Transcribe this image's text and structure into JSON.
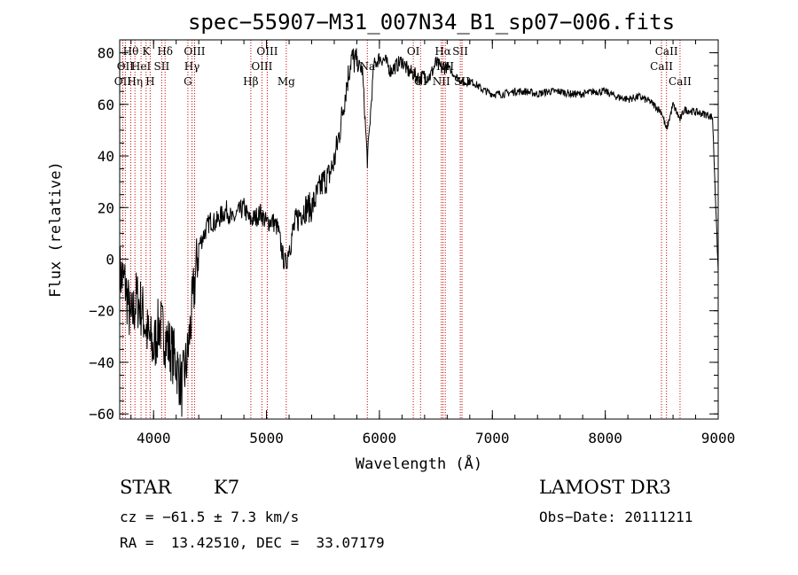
{
  "chart_data": {
    "type": "line",
    "title": "spec−55907−M31_007N34_B1_sp07−006.fits",
    "xlabel": "Wavelength (Å)",
    "ylabel": "Flux (relative)",
    "xlim": [
      3700,
      9000
    ],
    "ylim": [
      -62,
      85
    ],
    "xticks": [
      4000,
      5000,
      6000,
      7000,
      8000,
      9000
    ],
    "yticks": [
      -60,
      -40,
      -20,
      0,
      20,
      40,
      60,
      80
    ],
    "minor_x_step": 200,
    "minor_y_step": 5,
    "series": [
      {
        "name": "spectrum",
        "color": "#000000",
        "x": [
          3700,
          3750,
          3800,
          3850,
          3900,
          3950,
          4000,
          4050,
          4100,
          4150,
          4200,
          4250,
          4300,
          4350,
          4400,
          4450,
          4500,
          4550,
          4600,
          4650,
          4700,
          4750,
          4800,
          4850,
          4900,
          4950,
          5000,
          5050,
          5100,
          5150,
          5175,
          5200,
          5250,
          5300,
          5350,
          5400,
          5450,
          5500,
          5550,
          5600,
          5650,
          5700,
          5750,
          5800,
          5850,
          5893,
          5950,
          6000,
          6050,
          6100,
          6150,
          6200,
          6250,
          6300,
          6350,
          6400,
          6450,
          6500,
          6550,
          6600,
          6650,
          6700,
          6750,
          6800,
          6850,
          6900,
          6950,
          7000,
          7100,
          7200,
          7300,
          7400,
          7500,
          7600,
          7700,
          7800,
          7900,
          8000,
          8100,
          8200,
          8300,
          8400,
          8500,
          8542,
          8600,
          8662,
          8700,
          8800,
          8900,
          8950,
          9000
        ],
        "y": [
          -5,
          -10,
          -25,
          -15,
          -20,
          -30,
          -35,
          -25,
          -30,
          -35,
          -40,
          -50,
          -38,
          -15,
          5,
          10,
          15,
          14,
          17,
          19,
          15,
          18,
          20,
          15,
          16,
          18,
          14,
          15,
          12,
          0,
          -2,
          5,
          13,
          18,
          20,
          20,
          25,
          30,
          32,
          38,
          50,
          65,
          78,
          76,
          73,
          38,
          75,
          78,
          77,
          73,
          75,
          77,
          73,
          72,
          70,
          71,
          71,
          76,
          74,
          75,
          72,
          70,
          68,
          69,
          68,
          66,
          65,
          64,
          64,
          65,
          65,
          64,
          65,
          65,
          64,
          64,
          65,
          65,
          63,
          62,
          63,
          61,
          57,
          50,
          60,
          54,
          58,
          57,
          56,
          55,
          -5
        ]
      }
    ],
    "lines": [
      {
        "wl": 3727,
        "label": "OII",
        "row": 2
      },
      {
        "wl": 3750,
        "label": "OII",
        "row": 1
      },
      {
        "wl": 3798,
        "label": "Hθ",
        "row": 0
      },
      {
        "wl": 3835,
        "label": "Hη",
        "row": 2
      },
      {
        "wl": 3889,
        "label": "HeI",
        "row": 1
      },
      {
        "wl": 3934,
        "label": "K",
        "row": 0
      },
      {
        "wl": 3970,
        "label": "H",
        "row": 2
      },
      {
        "wl": 4072,
        "label": "SII",
        "row": 1
      },
      {
        "wl": 4102,
        "label": "Hδ",
        "row": 0
      },
      {
        "wl": 4304,
        "label": "G",
        "row": 2
      },
      {
        "wl": 4340,
        "label": "Hγ",
        "row": 1
      },
      {
        "wl": 4363,
        "label": "OIII",
        "row": 0
      },
      {
        "wl": 4861,
        "label": "Hβ",
        "row": 2
      },
      {
        "wl": 4959,
        "label": "OIII",
        "row": 1
      },
      {
        "wl": 5007,
        "label": "OIII",
        "row": 0
      },
      {
        "wl": 5175,
        "label": "Mg",
        "row": 2
      },
      {
        "wl": 5893,
        "label": "Na",
        "row": 1
      },
      {
        "wl": 6300,
        "label": "OI",
        "row": 0
      },
      {
        "wl": 6364,
        "label": "OI",
        "row": 2
      },
      {
        "wl": 6548,
        "label": "NII",
        "row": 2
      },
      {
        "wl": 6563,
        "label": "Hα",
        "row": 0
      },
      {
        "wl": 6583,
        "label": "NII",
        "row": 1
      },
      {
        "wl": 6716,
        "label": "SII",
        "row": 0
      },
      {
        "wl": 6731,
        "label": "SII",
        "row": 2
      },
      {
        "wl": 8498,
        "label": "CaII",
        "row": 1
      },
      {
        "wl": 8542,
        "label": "CaII",
        "row": 0
      },
      {
        "wl": 8662,
        "label": "CaII",
        "row": 2
      }
    ],
    "line_color": "#cc0000"
  },
  "info": {
    "class": "STAR",
    "subclass": "K7",
    "survey": "LAMOST DR3",
    "redshift": "cz = −61.5 ± 7.3 km/s",
    "obs_date": "Obs−Date: 20111211",
    "coords": "RA =  13.42510, DEC =  33.07179"
  }
}
